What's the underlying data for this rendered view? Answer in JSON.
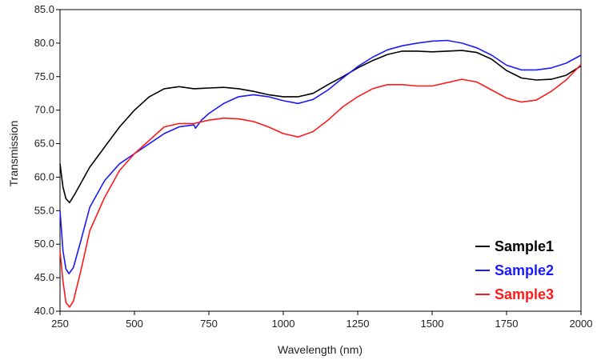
{
  "chart_data": {
    "type": "line",
    "xlabel": "Wavelength (nm)",
    "ylabel": "Transmission",
    "xlim": [
      250,
      2000
    ],
    "ylim": [
      40,
      85
    ],
    "xticks": [
      "250",
      "500",
      "750",
      "1000",
      "1250",
      "1500",
      "1750",
      "2000"
    ],
    "yticks": [
      "40.0",
      "45.0",
      "50.0",
      "55.0",
      "60.0",
      "65.0",
      "70.0",
      "75.0",
      "80.0",
      "85.0"
    ],
    "grid": false,
    "legend_position": "bottom-right",
    "series": [
      {
        "name": "Sample1",
        "color": "#000000",
        "points": [
          [
            250,
            62.0
          ],
          [
            260,
            58.5
          ],
          [
            270,
            56.8
          ],
          [
            282,
            56.2
          ],
          [
            300,
            57.5
          ],
          [
            325,
            59.5
          ],
          [
            350,
            61.5
          ],
          [
            400,
            64.5
          ],
          [
            450,
            67.5
          ],
          [
            500,
            70.0
          ],
          [
            550,
            72.0
          ],
          [
            600,
            73.2
          ],
          [
            650,
            73.5
          ],
          [
            700,
            73.2
          ],
          [
            750,
            73.3
          ],
          [
            800,
            73.4
          ],
          [
            850,
            73.2
          ],
          [
            900,
            72.8
          ],
          [
            950,
            72.3
          ],
          [
            1000,
            72.0
          ],
          [
            1050,
            72.0
          ],
          [
            1100,
            72.5
          ],
          [
            1150,
            73.8
          ],
          [
            1200,
            75.0
          ],
          [
            1250,
            76.3
          ],
          [
            1300,
            77.4
          ],
          [
            1350,
            78.3
          ],
          [
            1400,
            78.8
          ],
          [
            1450,
            78.8
          ],
          [
            1500,
            78.7
          ],
          [
            1550,
            78.8
          ],
          [
            1600,
            78.9
          ],
          [
            1650,
            78.6
          ],
          [
            1700,
            77.6
          ],
          [
            1750,
            75.9
          ],
          [
            1800,
            74.8
          ],
          [
            1850,
            74.5
          ],
          [
            1900,
            74.6
          ],
          [
            1950,
            75.2
          ],
          [
            2000,
            76.6
          ]
        ]
      },
      {
        "name": "Sample2",
        "color": "#1a1aff",
        "points": [
          [
            250,
            55.0
          ],
          [
            260,
            49.0
          ],
          [
            270,
            46.3
          ],
          [
            280,
            45.6
          ],
          [
            295,
            46.5
          ],
          [
            320,
            50.5
          ],
          [
            350,
            55.5
          ],
          [
            400,
            59.5
          ],
          [
            450,
            62.0
          ],
          [
            500,
            63.5
          ],
          [
            550,
            65.0
          ],
          [
            600,
            66.5
          ],
          [
            650,
            67.5
          ],
          [
            700,
            67.8
          ],
          [
            705,
            67.3
          ],
          [
            725,
            68.5
          ],
          [
            750,
            69.5
          ],
          [
            800,
            71.0
          ],
          [
            850,
            72.0
          ],
          [
            900,
            72.3
          ],
          [
            950,
            72.0
          ],
          [
            1000,
            71.4
          ],
          [
            1050,
            71.0
          ],
          [
            1100,
            71.6
          ],
          [
            1150,
            73.0
          ],
          [
            1200,
            74.8
          ],
          [
            1250,
            76.5
          ],
          [
            1300,
            77.9
          ],
          [
            1350,
            79.0
          ],
          [
            1400,
            79.6
          ],
          [
            1450,
            80.0
          ],
          [
            1500,
            80.3
          ],
          [
            1550,
            80.4
          ],
          [
            1600,
            80.0
          ],
          [
            1650,
            79.3
          ],
          [
            1700,
            78.2
          ],
          [
            1750,
            76.7
          ],
          [
            1800,
            76.0
          ],
          [
            1850,
            76.0
          ],
          [
            1900,
            76.3
          ],
          [
            1950,
            77.0
          ],
          [
            2000,
            78.2
          ]
        ]
      },
      {
        "name": "Sample3",
        "color": "#ff1a1a",
        "points": [
          [
            250,
            49.0
          ],
          [
            260,
            44.5
          ],
          [
            270,
            41.3
          ],
          [
            282,
            40.6
          ],
          [
            295,
            41.5
          ],
          [
            320,
            46.0
          ],
          [
            350,
            52.0
          ],
          [
            400,
            57.0
          ],
          [
            450,
            61.0
          ],
          [
            500,
            63.5
          ],
          [
            550,
            65.5
          ],
          [
            600,
            67.5
          ],
          [
            650,
            68.0
          ],
          [
            700,
            68.0
          ],
          [
            750,
            68.5
          ],
          [
            800,
            68.8
          ],
          [
            850,
            68.7
          ],
          [
            900,
            68.3
          ],
          [
            950,
            67.5
          ],
          [
            1000,
            66.5
          ],
          [
            1050,
            66.0
          ],
          [
            1100,
            66.8
          ],
          [
            1150,
            68.5
          ],
          [
            1200,
            70.5
          ],
          [
            1250,
            72.0
          ],
          [
            1300,
            73.2
          ],
          [
            1350,
            73.8
          ],
          [
            1400,
            73.8
          ],
          [
            1450,
            73.6
          ],
          [
            1500,
            73.6
          ],
          [
            1550,
            74.1
          ],
          [
            1600,
            74.6
          ],
          [
            1650,
            74.2
          ],
          [
            1700,
            73.0
          ],
          [
            1750,
            71.8
          ],
          [
            1800,
            71.2
          ],
          [
            1850,
            71.5
          ],
          [
            1900,
            72.8
          ],
          [
            1950,
            74.5
          ],
          [
            2000,
            76.8
          ]
        ]
      }
    ]
  }
}
